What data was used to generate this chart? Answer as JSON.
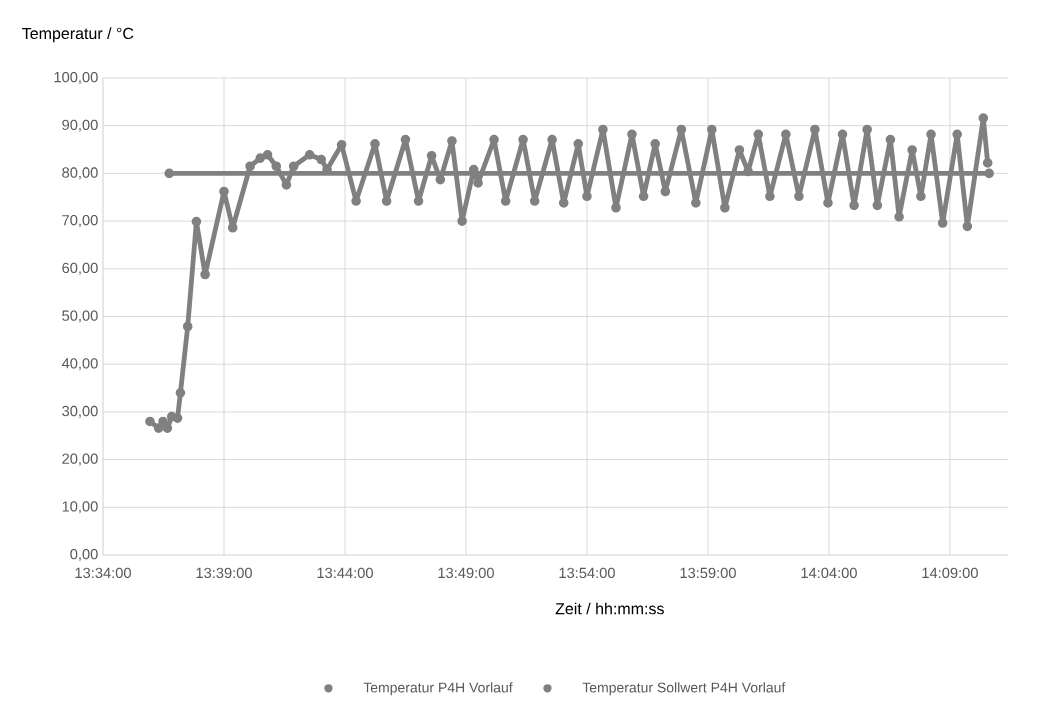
{
  "chart_data": {
    "type": "line",
    "ylabel": "Temperatur / °C",
    "xlabel": "Zeit / hh:mm:ss",
    "series": [
      {
        "name": "Temperatur P4H Vorlauf",
        "color": "#808080",
        "x": [
          13.599,
          13.605,
          13.608,
          13.611,
          13.614,
          13.618,
          13.62,
          13.625,
          13.631,
          13.637,
          13.65,
          13.656,
          13.668,
          13.675,
          13.68,
          13.686,
          13.693,
          13.698,
          13.709,
          13.717,
          13.721,
          13.731,
          13.741,
          13.754,
          13.762,
          13.775,
          13.784,
          13.793,
          13.799,
          13.807,
          13.814,
          13.822,
          13.825,
          13.836,
          13.844,
          13.856,
          13.864,
          13.876,
          13.884,
          13.894,
          13.9,
          13.911,
          13.92,
          13.931,
          13.939,
          13.947,
          13.954,
          13.965,
          13.975,
          13.986,
          13.995,
          14.005,
          14.011,
          14.018,
          14.026,
          14.037,
          14.046,
          14.057,
          14.066,
          14.076,
          14.084,
          14.093,
          14.1,
          14.109,
          14.115,
          14.124,
          14.13,
          14.137,
          14.145,
          14.155,
          14.162,
          14.173,
          14.176
        ],
        "values": [
          28,
          26.6,
          28,
          26.6,
          29,
          28.7,
          34,
          47.9,
          69.9,
          58.8,
          76.2,
          68.6,
          81.5,
          83.2,
          83.9,
          81.5,
          77.6,
          81.5,
          83.9,
          82.9,
          80.8,
          86,
          74.2,
          86.2,
          74.2,
          87.1,
          74.2,
          83.7,
          78.7,
          86.8,
          70,
          80.8,
          78,
          87.1,
          74.2,
          87.1,
          74.2,
          87.1,
          73.8,
          86.2,
          75.2,
          89.2,
          72.8,
          88.2,
          75.2,
          86.2,
          76.2,
          89.2,
          73.8,
          89.2,
          72.8,
          84.9,
          80.4,
          88.2,
          75.2,
          88.2,
          75.2,
          89.2,
          73.8,
          88.2,
          73.3,
          89.2,
          73.3,
          87.1,
          70.9,
          84.9,
          75.2,
          88.2,
          69.6,
          88.2,
          68.9,
          91.6,
          82.2
        ]
      },
      {
        "name": "Temperatur Sollwert P4H Vorlauf",
        "color": "#808080",
        "x": [
          13.6123,
          14.177
        ],
        "values": [
          80,
          80
        ]
      }
    ],
    "xlim": [
      13.566667,
      14.19
    ],
    "xticks": [
      {
        "value": 13.566667,
        "label": "13:34:00"
      },
      {
        "value": 13.65,
        "label": "13:39:00"
      },
      {
        "value": 13.733333,
        "label": "13:44:00"
      },
      {
        "value": 13.816667,
        "label": "13:49:00"
      },
      {
        "value": 13.9,
        "label": "13:54:00"
      },
      {
        "value": 13.983333,
        "label": "13:59:00"
      },
      {
        "value": 14.066667,
        "label": "14:04:00"
      },
      {
        "value": 14.15,
        "label": "14:09:00"
      }
    ],
    "ylim": [
      0,
      100
    ],
    "yticks": [
      {
        "value": 0,
        "label": "0,00"
      },
      {
        "value": 10,
        "label": "10,00"
      },
      {
        "value": 20,
        "label": "20,00"
      },
      {
        "value": 30,
        "label": "30,00"
      },
      {
        "value": 40,
        "label": "40,00"
      },
      {
        "value": 50,
        "label": "50,00"
      },
      {
        "value": 60,
        "label": "60,00"
      },
      {
        "value": 70,
        "label": "70,00"
      },
      {
        "value": 80,
        "label": "80,00"
      },
      {
        "value": 90,
        "label": "90,00"
      },
      {
        "value": 100,
        "label": "100,00"
      }
    ],
    "grid": true,
    "legend": "bottom",
    "marker": "circle",
    "line_style": "solid"
  }
}
